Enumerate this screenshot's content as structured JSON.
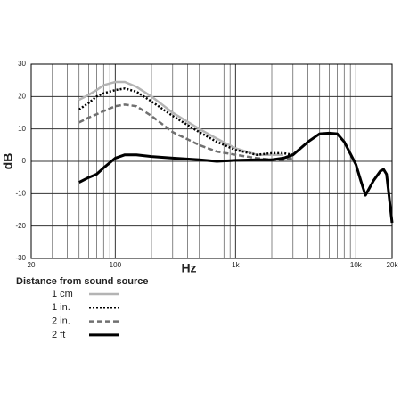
{
  "chart_data": {
    "type": "line",
    "log_x": true,
    "grid": true,
    "xlabel": "Hz",
    "ylabel": "dB",
    "legend_title": "Distance from sound source",
    "legend_position": "below",
    "xlim": [
      20,
      20000
    ],
    "ylim": [
      -30,
      30
    ],
    "xticks": [
      20,
      100,
      {
        "value": 1000,
        "label": "1k"
      },
      {
        "value": 10000,
        "label": "10k"
      },
      {
        "value": 20000,
        "label": "20k"
      }
    ],
    "x_minor_ticks": [
      30,
      40,
      50,
      60,
      70,
      80,
      90,
      200,
      300,
      400,
      500,
      600,
      700,
      800,
      900,
      2000,
      3000,
      4000,
      5000,
      6000,
      7000,
      8000,
      9000
    ],
    "yticks": [
      -30,
      -20,
      -10,
      0,
      10,
      20,
      30
    ],
    "x": [
      50,
      60,
      70,
      80,
      100,
      120,
      150,
      200,
      300,
      500,
      700,
      1000,
      1500,
      2000,
      2500,
      3000,
      4000,
      5000,
      6000,
      7000,
      8000,
      10000,
      11000,
      12000,
      14000,
      16000,
      17000,
      18000,
      20000
    ],
    "series": [
      {
        "name": "1 cm",
        "color": "#b4b4b4",
        "style": "solid",
        "width": 2.5,
        "values": [
          19,
          20.5,
          22,
          23.5,
          24.5,
          24.5,
          23,
          20,
          15,
          10,
          7,
          4,
          2,
          2,
          2,
          null,
          null,
          null,
          null,
          null,
          null,
          null,
          null,
          null,
          null,
          null,
          null,
          null,
          null
        ]
      },
      {
        "name": "1 in.",
        "color": "#000000",
        "style": "dotted",
        "width": 2.5,
        "values": [
          16,
          18,
          20,
          21,
          22,
          22.5,
          21.5,
          18.5,
          14,
          9,
          6,
          3.5,
          2,
          2.5,
          2.5,
          2,
          null,
          null,
          null,
          null,
          null,
          null,
          null,
          null,
          null,
          null,
          null,
          null,
          null
        ]
      },
      {
        "name": "2 in.",
        "color": "#707070",
        "style": "dashed",
        "width": 2.5,
        "values": [
          12,
          13.5,
          14.5,
          15.5,
          17,
          17.5,
          17,
          14,
          9,
          5,
          3,
          2,
          1,
          0.5,
          0.5,
          1,
          null,
          null,
          null,
          null,
          null,
          null,
          null,
          null,
          null,
          null,
          null,
          null,
          null
        ]
      },
      {
        "name": "2 ft",
        "color": "#000000",
        "style": "solid",
        "width": 3,
        "values": [
          -6.5,
          -5,
          -4,
          -2,
          1,
          2,
          2,
          1.5,
          1,
          0.5,
          0,
          0.3,
          0.5,
          0.5,
          1,
          2,
          6,
          8.5,
          8.7,
          8.5,
          6,
          -1,
          -6,
          -10.5,
          -6,
          -3,
          -2.5,
          -4,
          -19
        ]
      }
    ]
  }
}
